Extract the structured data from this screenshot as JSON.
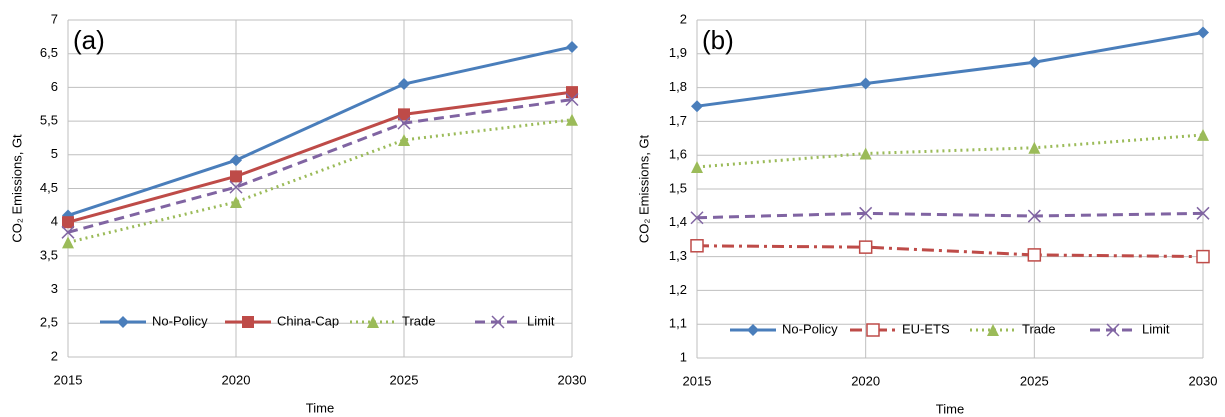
{
  "chart_data": [
    {
      "type": "line",
      "label": "(a)",
      "x_label": "Time",
      "y_label": "CO₂ Emissions, Gt",
      "x": [
        2015,
        2020,
        2025,
        2030
      ],
      "xlim": [
        2015,
        2030
      ],
      "xticks": [
        2015,
        2020,
        2025,
        2030
      ],
      "ylim": [
        2,
        7
      ],
      "yticks": [
        2,
        {
          "value": 2.5,
          "label": "2,5"
        },
        3,
        {
          "value": 3.5,
          "label": "3,5"
        },
        4,
        {
          "value": 4.5,
          "label": "4,5"
        },
        5,
        {
          "value": 5.5,
          "label": "5,5"
        },
        6,
        {
          "value": 6.5,
          "label": "6,5"
        },
        7
      ],
      "grid": true,
      "legend": "bottom",
      "series": [
        {
          "name": "No-Policy",
          "color": "#4a7ebb",
          "marker": "diamond",
          "line_style": "solid",
          "values": [
            4.1,
            4.92,
            6.05,
            6.6
          ]
        },
        {
          "name": "China-Cap",
          "color": "#be4b48",
          "marker": "square",
          "line_style": "solid",
          "values": [
            4.0,
            4.68,
            5.6,
            5.93
          ]
        },
        {
          "name": "Trade",
          "color": "#9bbb59",
          "marker": "triangle",
          "line_style": "dotted",
          "values": [
            3.7,
            4.3,
            5.22,
            5.52
          ]
        },
        {
          "name": "Limit",
          "color": "#8064a2",
          "marker": "x",
          "line_style": "dashed",
          "values": [
            3.85,
            4.52,
            5.47,
            5.82
          ]
        }
      ]
    },
    {
      "type": "line",
      "label": "(b)",
      "x_label": "Time",
      "y_label": "CO₂ Emissions, Gt",
      "x": [
        2015,
        2020,
        2025,
        2030
      ],
      "xlim": [
        2015,
        2030
      ],
      "xticks": [
        2015,
        2020,
        2025,
        2030
      ],
      "ylim": [
        1,
        2
      ],
      "yticks": [
        1,
        {
          "value": 1.1,
          "label": "1,1"
        },
        {
          "value": 1.2,
          "label": "1,2"
        },
        {
          "value": 1.3,
          "label": "1,3"
        },
        {
          "value": 1.4,
          "label": "1,4"
        },
        {
          "value": 1.5,
          "label": "1,5"
        },
        {
          "value": 1.6,
          "label": "1,6"
        },
        {
          "value": 1.7,
          "label": "1,7"
        },
        {
          "value": 1.8,
          "label": "1,8"
        },
        {
          "value": 1.9,
          "label": "1,9"
        },
        2
      ],
      "grid": true,
      "legend": "bottom",
      "series": [
        {
          "name": "No-Policy",
          "color": "#4a7ebb",
          "marker": "diamond",
          "line_style": "solid",
          "values": [
            1.745,
            1.812,
            1.875,
            1.963
          ]
        },
        {
          "name": "EU-ETS",
          "color": "#be4b48",
          "marker": "hollow-square",
          "line_style": "dash-dot",
          "values": [
            1.332,
            1.328,
            1.305,
            1.3
          ]
        },
        {
          "name": "Trade",
          "color": "#9bbb59",
          "marker": "triangle",
          "line_style": "dotted",
          "values": [
            1.565,
            1.605,
            1.622,
            1.66
          ]
        },
        {
          "name": "Limit",
          "color": "#8064a2",
          "marker": "x",
          "line_style": "dashed",
          "values": [
            1.415,
            1.428,
            1.42,
            1.428
          ]
        }
      ]
    }
  ]
}
